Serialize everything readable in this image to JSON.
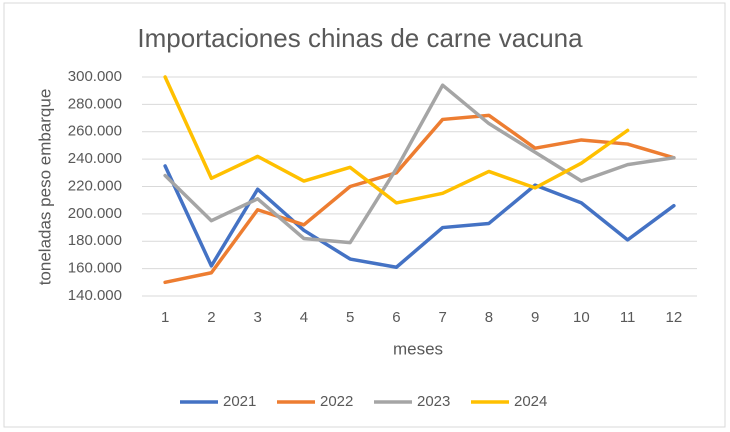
{
  "chart_data": {
    "type": "line",
    "title": "Importaciones chinas de carne vacuna",
    "xlabel": "meses",
    "ylabel": "toneladas peso embarque",
    "categories": [
      "1",
      "2",
      "3",
      "4",
      "5",
      "6",
      "7",
      "8",
      "9",
      "10",
      "11",
      "12"
    ],
    "ylim": [
      140000,
      300000
    ],
    "yticks": [
      {
        "value": 140000,
        "label": "140.000"
      },
      {
        "value": 160000,
        "label": "160.000"
      },
      {
        "value": 180000,
        "label": "180.000"
      },
      {
        "value": 200000,
        "label": "200.000"
      },
      {
        "value": 220000,
        "label": "220.000"
      },
      {
        "value": 240000,
        "label": "240.000"
      },
      {
        "value": 260000,
        "label": "260.000"
      },
      {
        "value": 280000,
        "label": "280.000"
      },
      {
        "value": 300000,
        "label": "300.000"
      }
    ],
    "grid": true,
    "legend": "bottom",
    "series": [
      {
        "name": "2021",
        "color": "#4472c4",
        "values": [
          235000,
          162000,
          218000,
          188000,
          167000,
          161000,
          190000,
          193000,
          221000,
          208000,
          181000,
          206000
        ]
      },
      {
        "name": "2022",
        "color": "#ed7d31",
        "values": [
          150000,
          157000,
          203000,
          192000,
          220000,
          230000,
          269000,
          272000,
          248000,
          254000,
          251000,
          241000
        ]
      },
      {
        "name": "2023",
        "color": "#a5a5a5",
        "values": [
          228000,
          195000,
          211000,
          182000,
          179000,
          233000,
          294000,
          266000,
          245000,
          224000,
          236000,
          241000
        ]
      },
      {
        "name": "2024",
        "color": "#ffc000",
        "values": [
          300000,
          226000,
          242000,
          224000,
          234000,
          208000,
          215000,
          231000,
          219000,
          237000,
          261000,
          null
        ]
      }
    ]
  }
}
